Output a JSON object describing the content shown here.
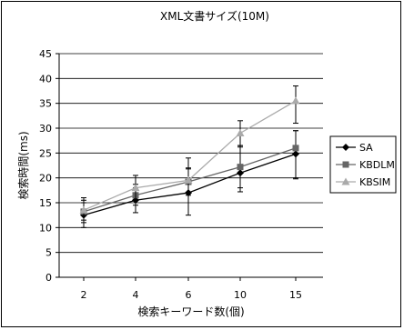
{
  "chart_data": {
    "type": "line",
    "title": "XML文書サイズ(10M)",
    "xlabel": "検索キーワード数(個)",
    "ylabel": "検索時間(ms)",
    "categories": [
      "2",
      "4",
      "6",
      "10",
      "15"
    ],
    "ylim": [
      0,
      45
    ],
    "yticks": [
      0,
      5,
      10,
      15,
      20,
      25,
      30,
      35,
      40,
      45
    ],
    "grid": true,
    "legend_position": "right",
    "series": [
      {
        "name": "SA",
        "color": "#000000",
        "marker": "diamond",
        "values": [
          12.5,
          15.5,
          17,
          21,
          24.8
        ],
        "err_low": [
          10,
          13,
          12.5,
          17.2,
          19.8
        ],
        "err_high": [
          15,
          18,
          21.8,
          26.2,
          29.5
        ]
      },
      {
        "name": "KBDLM",
        "color": "#666666",
        "marker": "square",
        "values": [
          13.2,
          16.5,
          19.2,
          22.2,
          26
        ],
        "err_low": [
          11,
          14.5,
          16.5,
          18,
          20
        ],
        "err_high": [
          15.5,
          18.7,
          22,
          26.5,
          29.5
        ]
      },
      {
        "name": "KBSIM",
        "color": "#aaaaaa",
        "marker": "triangle",
        "values": [
          13.5,
          18,
          19.5,
          29,
          35.5
        ],
        "err_low": [
          11.5,
          15.5,
          17,
          26.5,
          31
        ],
        "err_high": [
          16,
          20.5,
          24,
          31.5,
          38.5
        ]
      }
    ]
  }
}
